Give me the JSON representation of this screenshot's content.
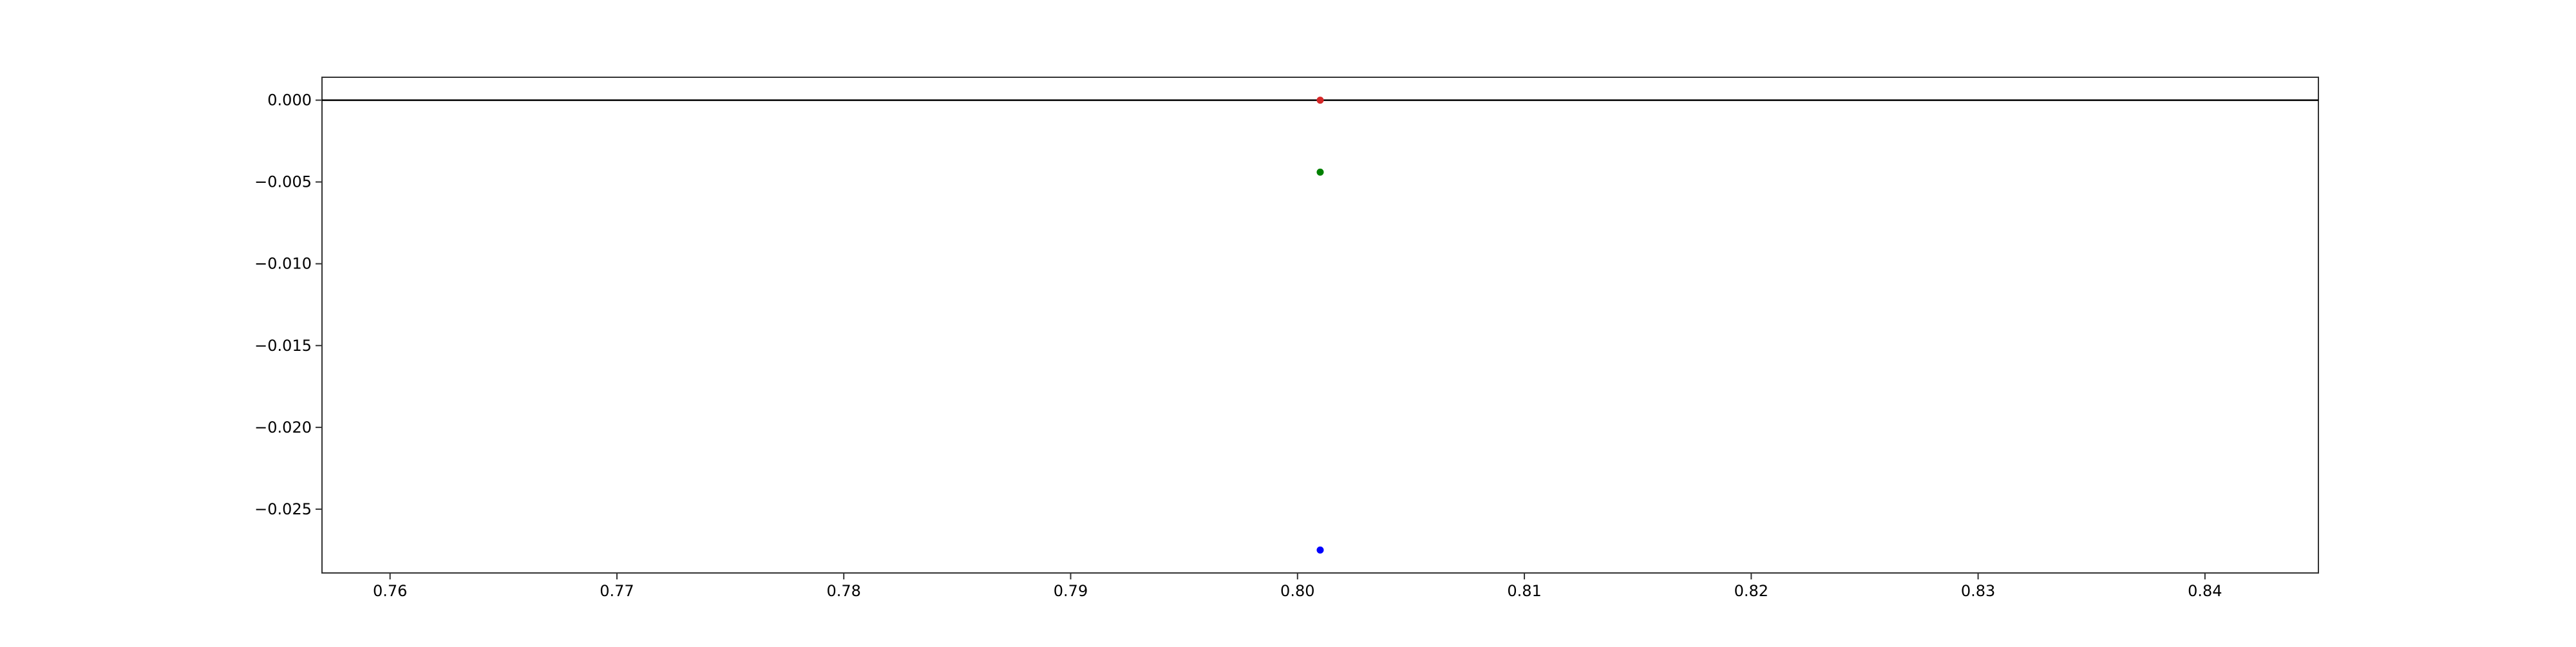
{
  "chart_data": {
    "type": "scatter",
    "title": "",
    "xlabel": "",
    "ylabel": "",
    "xlim": [
      0.757,
      0.845
    ],
    "ylim": [
      -0.0289,
      0.0014
    ],
    "xticks": [
      0.76,
      0.77,
      0.78,
      0.79,
      0.8,
      0.81,
      0.82,
      0.83,
      0.84
    ],
    "xtick_labels": [
      "0.76",
      "0.77",
      "0.78",
      "0.79",
      "0.80",
      "0.81",
      "0.82",
      "0.83",
      "0.84"
    ],
    "yticks": [
      0.0,
      -0.005,
      -0.01,
      -0.015,
      -0.02,
      -0.025
    ],
    "ytick_labels": [
      "0.000",
      "−0.005",
      "−0.010",
      "−0.015",
      "−0.020",
      "−0.025"
    ],
    "grid": false,
    "reference_line": {
      "y": 0.0,
      "color": "#000000"
    },
    "series": [
      {
        "x": [
          0.801
        ],
        "y": [
          0.0
        ],
        "color": "#d62728"
      },
      {
        "x": [
          0.801
        ],
        "y": [
          -0.0044
        ],
        "color": "#008000"
      },
      {
        "x": [
          0.801
        ],
        "y": [
          -0.0275
        ],
        "color": "#0000ff"
      }
    ]
  }
}
